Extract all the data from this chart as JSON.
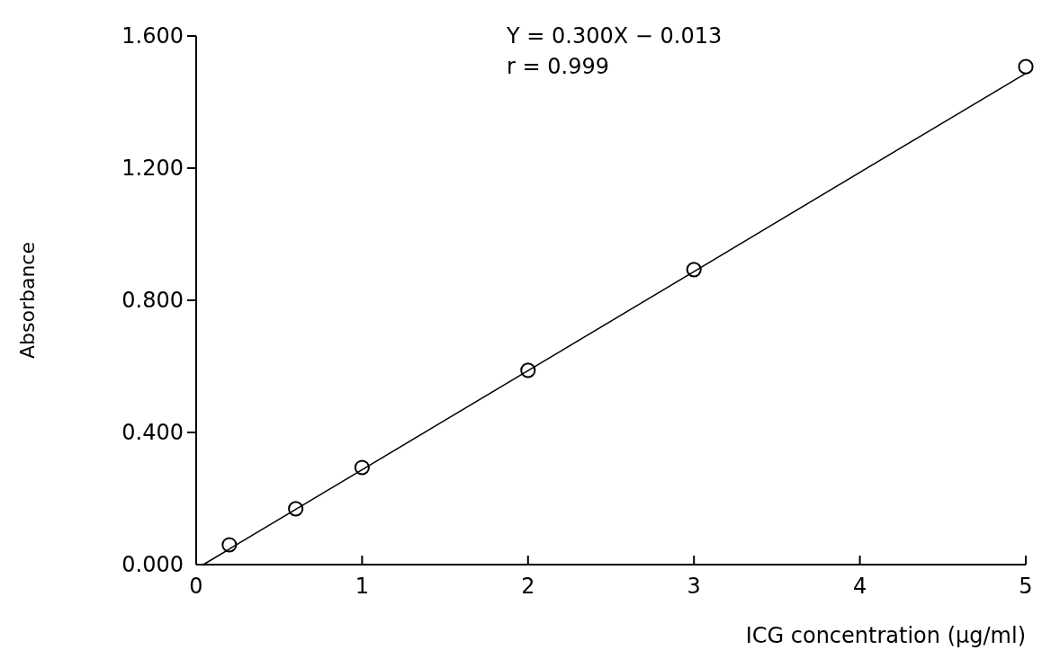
{
  "chart_data": {
    "type": "scatter",
    "xlabel": "ICG concentration (μg/ml)",
    "ylabel": "Absorbance",
    "xlim": [
      0,
      5
    ],
    "ylim": [
      0,
      1.6
    ],
    "xticks": [
      0,
      1,
      2,
      3,
      4,
      5
    ],
    "yticks": [
      {
        "value": 0,
        "label": "0.000"
      },
      {
        "value": 0.4,
        "label": "0.400"
      },
      {
        "value": 0.8,
        "label": "0.800"
      },
      {
        "value": 1.2,
        "label": "1.200"
      },
      {
        "value": 1.6,
        "label": "1.600"
      }
    ],
    "grid": false,
    "x": [
      0.2,
      0.6,
      1,
      2,
      3,
      5
    ],
    "series": [
      {
        "color": "#000000",
        "marker": "circle",
        "values": [
          0.06,
          0.169,
          0.294,
          0.588,
          0.893,
          1.507
        ]
      },
      {
        "type": "line",
        "color": "#000000",
        "marker": "none",
        "x": [
          0.043,
          5
        ],
        "values": [
          0,
          1.487
        ]
      }
    ],
    "annotations": [
      "Y = 0.300X − 0.013",
      "r = 0.999"
    ]
  }
}
